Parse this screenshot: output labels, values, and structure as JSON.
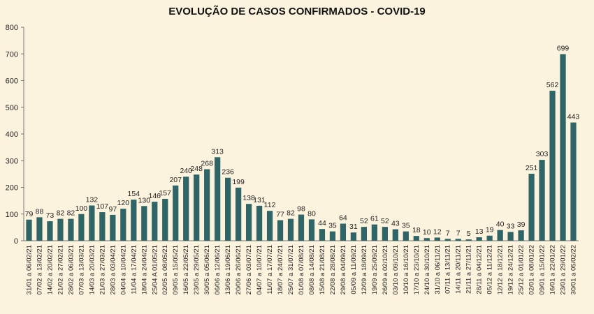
{
  "chart_data": {
    "type": "bar",
    "title": "EVOLUÇÃO DE CASOS CONFIRMADOS -  COVID-19",
    "xlabel": "",
    "ylabel": "",
    "ylim": [
      0,
      800
    ],
    "yticks": [
      0,
      100,
      200,
      300,
      400,
      500,
      600,
      700,
      800
    ],
    "grid": false,
    "bar_color": "#2f6567",
    "background_color": "#fbf3dd",
    "categories": [
      "31/01 a 06/02/21",
      "07/02 a 13/02/21",
      "14/02 a 20/02/21",
      "21/02 a 27/02/21",
      "28/02 a 06/03/21",
      "07/03 a 13/03/21",
      "14/03 a 20/03/21",
      "21/03 a 27/03/21",
      "28/03 a 03/04/21",
      "04/04 a 10/04/21",
      "11/04 a 17/04/21",
      "18/04 a 24/04/21",
      "25/04 A 01/05/21",
      "02/05 a 08/05/21",
      "09/05 a 15/05/21",
      "16/05 a 22/05/21",
      "23/05 a 29/05/21",
      "30/05 a 05/06/21",
      "06/06 a 12/06/21",
      "13/06 a 19/06/21",
      "20/06 a 26/06/21",
      "27/06 a 03/07/21",
      "04/07 a 10/07/21",
      "11/07 a 17/07/21",
      "18/07 a 24/07/21",
      "25/07 a 31/07/21",
      "01/08 a 07/08/21",
      "08/08 a 14/08/21",
      "15/08 a 21/08/21",
      "22/08 a 28/08/21",
      "29/08 a 04/09/21",
      "05/09 a 11/09/21",
      "12/09 a 18/09/21",
      "19/09 a 25/09/21",
      "26/09 a 02/10/21",
      "03/10 a 09/10/21",
      "10/10 a 16/10/21",
      "17/10 a 23/10/21",
      "24/10 a 30/10/21",
      "31/10 a 06/11/21",
      "07/11 a 13/11/21",
      "14/11 a 20/11/21",
      "21/11 a 27/11/21",
      "28/11 a 04/12/21",
      "05/12 a 11/12/21",
      "12/12 a 18/12/21",
      "19/12 a 24/12/21",
      "25/12 a 01/01/22",
      "02/01 a 08/01/22",
      "09/01 a 15/01/22",
      "16/01 a 22/01/22",
      "23/01 a 29/01/22",
      "30/01 a 05/02/22"
    ],
    "values": [
      79,
      88,
      73,
      82,
      82,
      100,
      132,
      107,
      97,
      120,
      154,
      130,
      146,
      157,
      207,
      240,
      248,
      268,
      313,
      236,
      199,
      138,
      131,
      112,
      77,
      82,
      98,
      80,
      44,
      35,
      64,
      31,
      52,
      61,
      52,
      43,
      35,
      18,
      10,
      12,
      7,
      7,
      5,
      13,
      19,
      40,
      33,
      39,
      251,
      303,
      562,
      699,
      443
    ]
  }
}
